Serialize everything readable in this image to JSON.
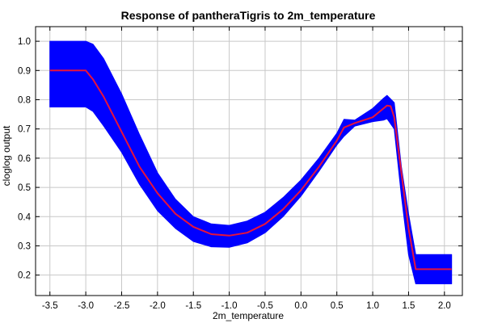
{
  "chart_data": {
    "type": "line",
    "title": "Response of pantheraTigris to 2m_temperature",
    "xlabel": "2m_temperature",
    "ylabel": "cloglog output",
    "xlim": [
      -3.7,
      2.25
    ],
    "ylim": [
      0.13,
      1.05
    ],
    "grid": true,
    "x_ticks": [
      -3.5,
      -3.0,
      -2.5,
      -2.0,
      -1.5,
      -1.0,
      -0.5,
      0.0,
      0.5,
      1.0,
      1.5,
      2.0
    ],
    "x_tick_labels": [
      "-3.5",
      "-3.0",
      "-2.5",
      "-2.0",
      "-1.5",
      "-1.0",
      "-0.5",
      "0.0",
      "0.5",
      "1.0",
      "1.5",
      "2.0"
    ],
    "y_ticks": [
      0.2,
      0.3,
      0.4,
      0.5,
      0.6,
      0.7,
      0.8,
      0.9,
      1.0
    ],
    "y_tick_labels": [
      "0.2",
      "0.3",
      "0.4",
      "0.5",
      "0.6",
      "0.7",
      "0.8",
      "0.9",
      "1.0"
    ],
    "colors": {
      "band": "#0000ff",
      "line": "#e8133b",
      "grid": "#c8c8c8",
      "axis": "#000000"
    },
    "band": {
      "x": [
        -3.5,
        -3.0,
        -2.9,
        -2.75,
        -2.5,
        -2.25,
        -2.0,
        -1.75,
        -1.5,
        -1.25,
        -1.0,
        -0.75,
        -0.5,
        -0.25,
        0.0,
        0.25,
        0.5,
        0.6,
        0.75,
        1.0,
        1.15,
        1.2,
        1.3,
        1.4,
        1.5,
        1.6,
        1.65,
        2.1
      ],
      "upper": [
        1.0,
        1.0,
        0.99,
        0.94,
        0.82,
        0.68,
        0.55,
        0.46,
        0.4,
        0.375,
        0.37,
        0.385,
        0.415,
        0.465,
        0.525,
        0.6,
        0.685,
        0.733,
        0.73,
        0.77,
        0.805,
        0.815,
        0.79,
        0.57,
        0.41,
        0.27,
        0.27,
        0.27
      ],
      "lower": [
        0.775,
        0.775,
        0.76,
        0.71,
        0.62,
        0.51,
        0.42,
        0.36,
        0.315,
        0.297,
        0.295,
        0.31,
        0.345,
        0.4,
        0.47,
        0.555,
        0.645,
        0.675,
        0.71,
        0.725,
        0.73,
        0.735,
        0.7,
        0.47,
        0.27,
        0.17,
        0.17,
        0.17
      ]
    },
    "series": [
      {
        "x": [
          -3.5,
          -3.0,
          -2.9,
          -2.75,
          -2.5,
          -2.25,
          -2.0,
          -1.75,
          -1.5,
          -1.25,
          -1.0,
          -0.75,
          -0.5,
          -0.25,
          0.0,
          0.25,
          0.5,
          0.6,
          0.75,
          1.0,
          1.15,
          1.2,
          1.25,
          1.3,
          1.4,
          1.5,
          1.6,
          1.65,
          2.1
        ],
        "values": [
          0.9,
          0.9,
          0.87,
          0.81,
          0.69,
          0.57,
          0.48,
          0.41,
          0.365,
          0.34,
          0.335,
          0.345,
          0.375,
          0.425,
          0.49,
          0.57,
          0.66,
          0.705,
          0.72,
          0.74,
          0.77,
          0.78,
          0.778,
          0.74,
          0.55,
          0.36,
          0.22,
          0.22,
          0.22
        ]
      }
    ]
  }
}
